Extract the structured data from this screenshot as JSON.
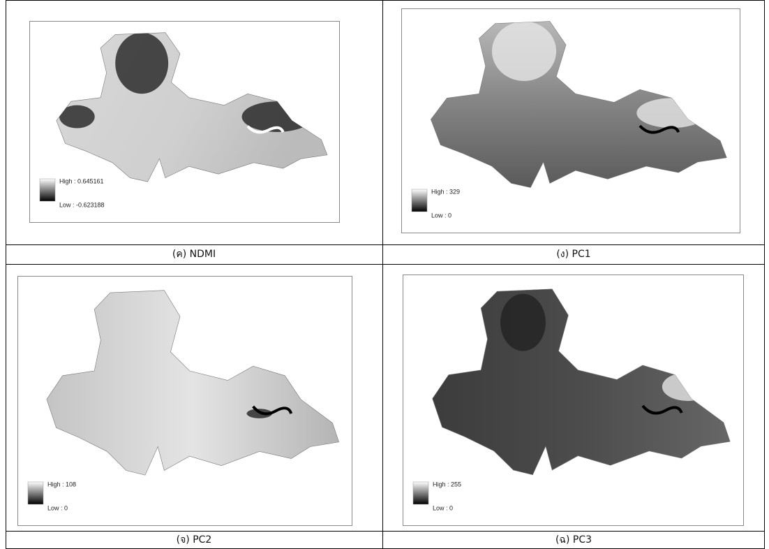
{
  "figure": {
    "panels": [
      {
        "caption": "(ค) NDMI",
        "legend_high": "High : 0.645161",
        "legend_low": "Low : -0.623188"
      },
      {
        "caption": "(ง) PC1",
        "legend_high": "High : 329",
        "legend_low": "Low : 0"
      },
      {
        "caption": "(จ) PC2",
        "legend_high": "High : 108",
        "legend_low": "Low : 0"
      },
      {
        "caption": "(ฉ) PC3",
        "legend_high": "High : 255",
        "legend_low": "Low : 0"
      }
    ]
  }
}
